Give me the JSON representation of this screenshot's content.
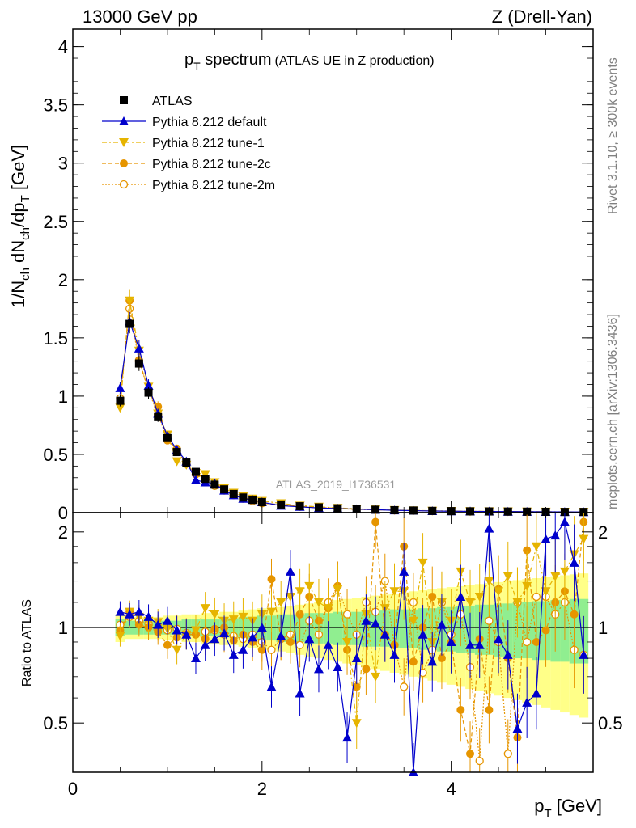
{
  "header": {
    "left": "13000 GeV pp",
    "right": "Z (Drell-Yan)"
  },
  "side_labels": {
    "rivet": "Rivet 3.1.10, ≥ 300k events",
    "mcplots": "mcplots.cern.ch [arXiv:1306.3436]"
  },
  "watermark": "ATLAS_2019_I1736531",
  "colors": {
    "data": "#000000",
    "default": "#0000cc",
    "tune1": "#e6b400",
    "tune2c": "#e69500",
    "tune2m": "#e69500",
    "band_inner": "#90ee90",
    "band_outer": "#ffff88"
  },
  "chart_data": [
    {
      "type": "line",
      "title_main": "p",
      "title_sub": "T",
      "title_word": " spectrum",
      "title_extra": "(ATLAS UE in Z production)",
      "ylabel": "1/N_ch dN_ch/dp_T [GeV]",
      "ylabel_parts": [
        "1/N",
        "ch",
        " dN",
        "ch",
        "/dp",
        "T",
        " [GeV]"
      ],
      "xlim": [
        0,
        5.5
      ],
      "ylim": [
        0,
        4.15
      ],
      "yticks": [
        "0",
        "0.5",
        "1",
        "1.5",
        "2",
        "2.5",
        "3",
        "3.5",
        "4"
      ],
      "legend": [
        {
          "name": "ATLAS",
          "marker": "square"
        },
        {
          "name": "Pythia 8.212 default",
          "marker": "triangle-up"
        },
        {
          "name": "Pythia 8.212 tune-1",
          "marker": "triangle-down"
        },
        {
          "name": "Pythia 8.212 tune-2c",
          "marker": "circle"
        },
        {
          "name": "Pythia 8.212 tune-2m",
          "marker": "open-circle"
        }
      ],
      "x": [
        0.5,
        0.6,
        0.7,
        0.8,
        0.9,
        1.0,
        1.1,
        1.2,
        1.3,
        1.4,
        1.5,
        1.6,
        1.7,
        1.8,
        1.9,
        2.0,
        2.2,
        2.4,
        2.6,
        2.8,
        3.0,
        3.2,
        3.4,
        3.6,
        3.8,
        4.0,
        4.2,
        4.4,
        4.6,
        4.8,
        5.0,
        5.2,
        5.4
      ],
      "series": [
        {
          "name": "ATLAS",
          "values": [
            0.96,
            1.62,
            1.28,
            1.03,
            0.82,
            0.64,
            0.52,
            0.43,
            0.35,
            0.29,
            0.24,
            0.2,
            0.16,
            0.13,
            0.11,
            0.09,
            0.07,
            0.055,
            0.045,
            0.037,
            0.03,
            0.025,
            0.021,
            0.018,
            0.015,
            0.013,
            0.011,
            0.01,
            0.009,
            0.008,
            0.007,
            0.006,
            0.006
          ]
        },
        {
          "name": "Pythia 8.212 default",
          "values": [
            1.07,
            1.64,
            1.41,
            1.09,
            0.85,
            0.66,
            0.54,
            0.44,
            0.28,
            0.26,
            0.25,
            0.19,
            0.15,
            0.12,
            0.11,
            0.09,
            0.06,
            0.05,
            0.04,
            0.035,
            0.03,
            0.025,
            0.02,
            0.017,
            0.014,
            0.012,
            0.011,
            0.01,
            0.009,
            0.008,
            0.007,
            0.006,
            0.005
          ]
        },
        {
          "name": "Pythia 8.212 tune-1",
          "values": [
            0.9,
            1.82,
            1.39,
            1.08,
            0.85,
            0.67,
            0.44,
            0.41,
            0.34,
            0.33,
            0.26,
            0.21,
            0.17,
            0.14,
            0.12,
            0.1,
            0.08,
            0.06,
            0.05,
            0.04,
            0.033,
            0.027,
            0.022,
            0.019,
            0.016,
            0.014,
            0.012,
            0.011,
            0.01,
            0.009,
            0.008,
            0.007,
            0.006
          ]
        },
        {
          "name": "Pythia 8.212 tune-2c",
          "values": [
            0.94,
            1.82,
            1.31,
            1.05,
            0.91,
            0.62,
            0.55,
            0.42,
            0.33,
            0.3,
            0.26,
            0.2,
            0.15,
            0.13,
            0.11,
            0.08,
            0.07,
            0.055,
            0.045,
            0.037,
            0.03,
            0.025,
            0.021,
            0.018,
            0.015,
            0.013,
            0.011,
            0.01,
            0.009,
            0.008,
            0.007,
            0.006,
            0.006
          ]
        },
        {
          "name": "Pythia 8.212 tune-2m",
          "values": [
            0.98,
            1.75,
            1.3,
            1.05,
            0.84,
            0.63,
            0.53,
            0.42,
            0.33,
            0.28,
            0.23,
            0.19,
            0.15,
            0.12,
            0.1,
            0.085,
            0.065,
            0.05,
            0.042,
            0.035,
            0.028,
            0.024,
            0.02,
            0.017,
            0.014,
            0.012,
            0.01,
            0.009,
            0.008,
            0.007,
            0.006,
            0.006,
            0.005
          ]
        }
      ]
    },
    {
      "type": "line",
      "ylabel": "Ratio to ATLAS",
      "xlabel_main": "p",
      "xlabel_sub": "T",
      "xlabel_unit": " [GeV]",
      "xlim": [
        0,
        5.5
      ],
      "ylim": [
        0.35,
        2.3
      ],
      "xticks": [
        "0",
        "2",
        "4"
      ],
      "yticks": [
        "0.5",
        "1",
        "2"
      ],
      "x": [
        0.5,
        0.6,
        0.7,
        0.8,
        0.9,
        1.0,
        1.1,
        1.2,
        1.3,
        1.4,
        1.5,
        1.6,
        1.7,
        1.8,
        1.9,
        2.0,
        2.1,
        2.2,
        2.3,
        2.4,
        2.5,
        2.6,
        2.7,
        2.8,
        2.9,
        3.0,
        3.1,
        3.2,
        3.3,
        3.4,
        3.5,
        3.6,
        3.7,
        3.8,
        3.9,
        4.0,
        4.1,
        4.2,
        4.3,
        4.4,
        4.5,
        4.6,
        4.7,
        4.8,
        4.9,
        5.0,
        5.1,
        5.2,
        5.3,
        5.4
      ],
      "band_inner": [
        0.06,
        0.05,
        0.05,
        0.05,
        0.05,
        0.05,
        0.05,
        0.06,
        0.06,
        0.06,
        0.06,
        0.07,
        0.07,
        0.08,
        0.08,
        0.09,
        0.09,
        0.1,
        0.1,
        0.1,
        0.11,
        0.11,
        0.11,
        0.12,
        0.12,
        0.12,
        0.13,
        0.13,
        0.13,
        0.14,
        0.14,
        0.14,
        0.15,
        0.15,
        0.16,
        0.16,
        0.17,
        0.17,
        0.18,
        0.18,
        0.19,
        0.19,
        0.2,
        0.2,
        0.21,
        0.21,
        0.22,
        0.22,
        0.23,
        0.23
      ],
      "band_outer": [
        0.1,
        0.08,
        0.08,
        0.08,
        0.08,
        0.09,
        0.09,
        0.1,
        0.1,
        0.11,
        0.11,
        0.12,
        0.12,
        0.13,
        0.14,
        0.15,
        0.15,
        0.16,
        0.17,
        0.18,
        0.19,
        0.2,
        0.21,
        0.22,
        0.23,
        0.24,
        0.25,
        0.26,
        0.27,
        0.28,
        0.29,
        0.3,
        0.31,
        0.32,
        0.33,
        0.34,
        0.35,
        0.36,
        0.37,
        0.38,
        0.39,
        0.4,
        0.41,
        0.42,
        0.43,
        0.44,
        0.45,
        0.46,
        0.47,
        0.48
      ],
      "series": [
        {
          "name": "Pythia 8.212 default",
          "values": [
            1.12,
            1.1,
            1.12,
            1.08,
            1.02,
            1.05,
            0.98,
            0.95,
            0.8,
            0.88,
            0.92,
            0.96,
            0.82,
            0.85,
            0.93,
            1.0,
            0.65,
            0.94,
            1.5,
            0.62,
            0.92,
            0.74,
            0.88,
            0.75,
            0.45,
            0.8,
            1.05,
            1.03,
            0.95,
            0.82,
            1.5,
            0.35,
            0.95,
            0.78,
            1.02,
            0.9,
            1.25,
            0.88,
            0.88,
            2.05,
            0.92,
            0.82,
            0.48,
            0.58,
            0.62,
            1.9,
            1.95,
            2.15,
            1.6,
            0.82
          ]
        },
        {
          "name": "Pythia 8.212 tune-1",
          "values": [
            0.94,
            1.12,
            1.08,
            1.05,
            1.04,
            0.99,
            0.85,
            0.95,
            0.98,
            1.15,
            1.1,
            1.05,
            1.06,
            1.08,
            1.05,
            1.1,
            1.12,
            1.2,
            1.25,
            1.3,
            1.35,
            1.2,
            1.15,
            1.32,
            0.9,
            0.5,
            1.1,
            0.7,
            1.15,
            1.3,
            1.3,
            1.05,
            1.6,
            0.9,
            1.2,
            1.05,
            1.5,
            1.2,
            1.25,
            1.4,
            1.3,
            1.45,
            1.2,
            1.35,
            1.8,
            1.3,
            1.45,
            1.5,
            1.7,
            1.9
          ]
        },
        {
          "name": "Pythia 8.212 tune-2c",
          "values": [
            0.98,
            1.12,
            1.02,
            1.0,
            0.97,
            0.88,
            0.93,
            0.95,
            0.95,
            0.92,
            0.99,
            1.0,
            0.91,
            0.95,
            0.9,
            0.85,
            1.42,
            0.92,
            0.9,
            1.1,
            1.25,
            1.05,
            1.15,
            1.35,
            0.85,
            0.65,
            0.74,
            2.15,
            0.95,
            0.88,
            1.8,
            0.78,
            1.0,
            1.25,
            0.8,
            0.9,
            0.55,
            0.4,
            0.92,
            0.55,
            1.32,
            0.8,
            0.45,
            1.75,
            0.9,
            0.98,
            1.2,
            1.3,
            1.1,
            2.15
          ]
        },
        {
          "name": "Pythia 8.212 tune-2m",
          "values": [
            1.02,
            1.08,
            1.05,
            1.03,
            1.0,
            0.98,
            0.99,
            0.96,
            0.95,
            0.97,
            0.98,
            0.95,
            0.94,
            0.92,
            0.95,
            0.9,
            0.85,
            0.92,
            0.95,
            0.88,
            1.05,
            0.95,
            1.2,
            1.35,
            1.1,
            0.95,
            1.2,
            1.12,
            1.4,
            0.88,
            0.65,
            1.2,
            0.72,
            0.85,
            1.2,
            0.95,
            1.1,
            0.75,
            0.38,
            1.05,
            0.9,
            0.4,
            1.2,
            0.9,
            1.25,
            1.25,
            1.1,
            1.2,
            0.85,
            0.82
          ]
        }
      ]
    }
  ]
}
